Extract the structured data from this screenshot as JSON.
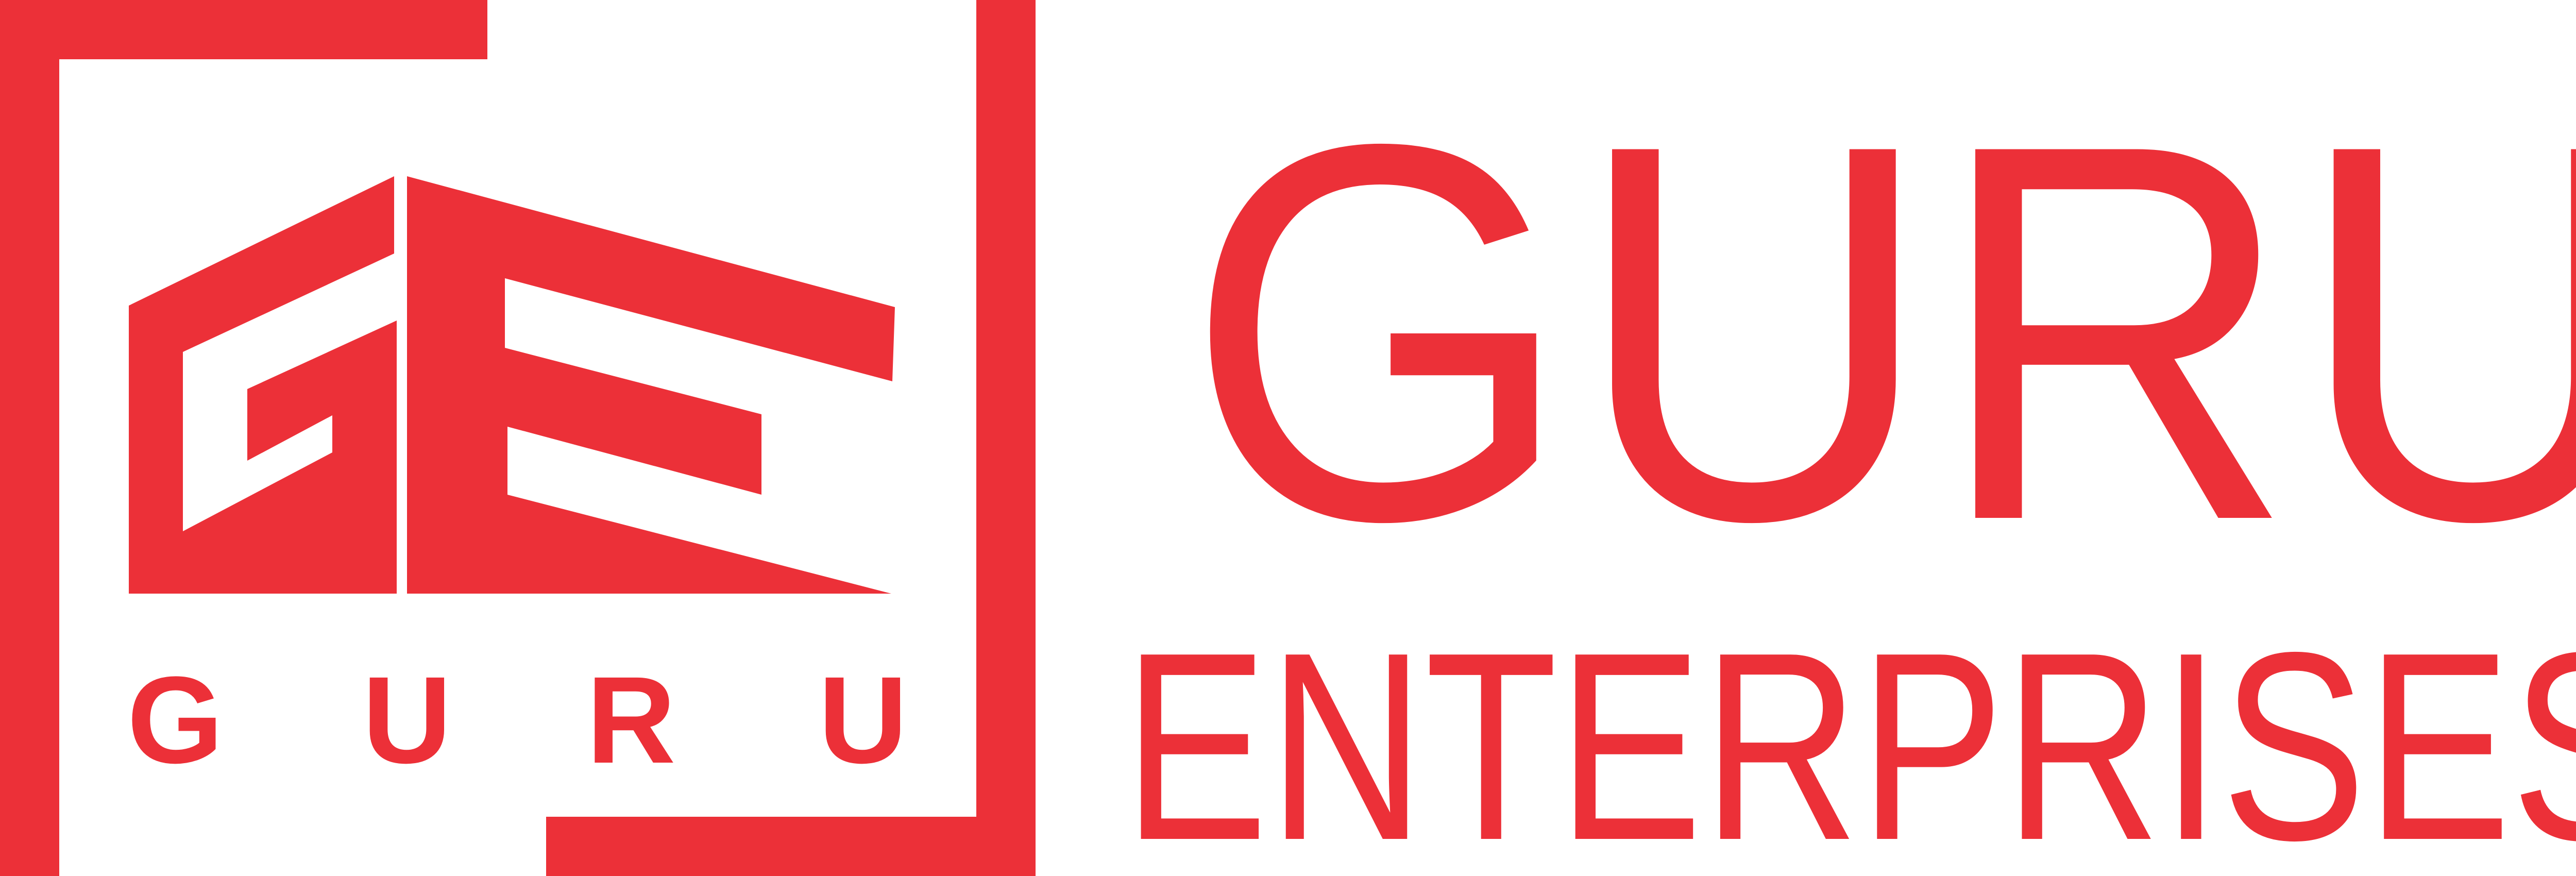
{
  "brand": {
    "color": "#ec3038",
    "monogram": "GE",
    "tagline_letters": [
      "G",
      "U",
      "R",
      "U"
    ],
    "name_line1": "GURU",
    "name_line2": "ENTERPRISES"
  }
}
